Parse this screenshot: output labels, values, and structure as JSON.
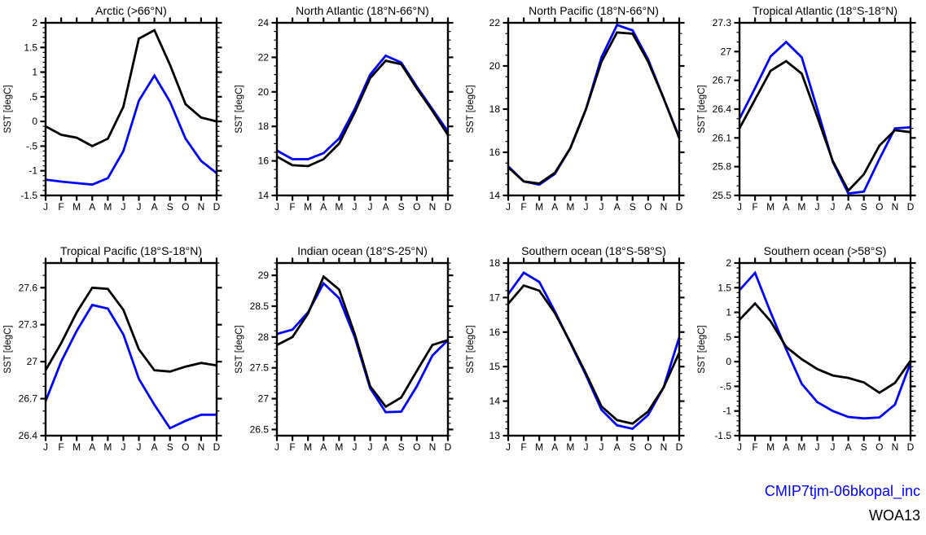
{
  "page": {
    "background": "#ffffff"
  },
  "legend": {
    "model_label": "CMIP7tjm-06bkopal_inc",
    "obs_label": "WOA13"
  },
  "colors": {
    "model": "#0000ff",
    "obs": "#000000"
  },
  "months": [
    "J",
    "F",
    "M",
    "A",
    "M",
    "J",
    "J",
    "A",
    "S",
    "O",
    "N",
    "D"
  ],
  "ylabel": "SST [degC]",
  "chart_data": [
    {
      "type": "line",
      "slug": "arctic",
      "title": "Arctic (>66°N)",
      "xlabel": "",
      "ylabel": "SST [degC]",
      "categories": [
        "J",
        "F",
        "M",
        "A",
        "M",
        "J",
        "J",
        "A",
        "S",
        "O",
        "N",
        "D"
      ],
      "ylim": [
        -1.5,
        2
      ],
      "yticks": [
        -1.5,
        -1,
        -0.5,
        0,
        0.5,
        1,
        1.5,
        2
      ],
      "ytick_labels": [
        "-1.5",
        "-1",
        "-.5",
        "0",
        ".5",
        "1",
        "1.5",
        "2"
      ],
      "minor_step": 0.1,
      "grid": false,
      "series": [
        {
          "name": "CMIP7tjm-06bkopal_inc",
          "color": "#0000ff",
          "values": [
            -1.18,
            -1.22,
            -1.25,
            -1.28,
            -1.15,
            -0.6,
            0.42,
            0.93,
            0.4,
            -0.35,
            -0.8,
            -1.05
          ]
        },
        {
          "name": "WOA13",
          "color": "#000000",
          "values": [
            -0.1,
            -0.27,
            -0.33,
            -0.5,
            -0.35,
            0.3,
            1.68,
            1.85,
            1.15,
            0.35,
            0.08,
            0.0
          ]
        }
      ]
    },
    {
      "type": "line",
      "slug": "north-atlantic",
      "title": "North Atlantic (18°N-66°N)",
      "xlabel": "",
      "ylabel": "SST [degC]",
      "categories": [
        "J",
        "F",
        "M",
        "A",
        "M",
        "J",
        "J",
        "A",
        "S",
        "O",
        "N",
        "D"
      ],
      "ylim": [
        14,
        24
      ],
      "yticks": [
        14,
        16,
        18,
        20,
        22,
        24
      ],
      "ytick_labels": [
        "14",
        "16",
        "18",
        "20",
        "22",
        "24"
      ],
      "minor_step": 0.5,
      "grid": false,
      "series": [
        {
          "name": "CMIP7tjm-06bkopal_inc",
          "color": "#0000ff",
          "values": [
            16.6,
            16.1,
            16.1,
            16.45,
            17.3,
            19.0,
            21.0,
            22.1,
            21.7,
            20.3,
            19.0,
            17.7
          ]
        },
        {
          "name": "WOA13",
          "color": "#000000",
          "values": [
            16.25,
            15.75,
            15.7,
            16.1,
            17.0,
            18.8,
            20.8,
            21.8,
            21.6,
            20.2,
            18.9,
            17.5
          ]
        }
      ]
    },
    {
      "type": "line",
      "slug": "north-pacific",
      "title": "North Pacific (18°N-66°N)",
      "xlabel": "",
      "ylabel": "SST [degC]",
      "categories": [
        "J",
        "F",
        "M",
        "A",
        "M",
        "J",
        "J",
        "A",
        "S",
        "O",
        "N",
        "D"
      ],
      "ylim": [
        14,
        22
      ],
      "yticks": [
        14,
        16,
        18,
        20,
        22
      ],
      "ytick_labels": [
        "14",
        "16",
        "18",
        "20",
        "22"
      ],
      "minor_step": 0.5,
      "grid": false,
      "series": [
        {
          "name": "CMIP7tjm-06bkopal_inc",
          "color": "#0000ff",
          "values": [
            15.35,
            14.65,
            14.5,
            15.0,
            16.2,
            18.0,
            20.4,
            21.9,
            21.65,
            20.3,
            18.5,
            16.7
          ]
        },
        {
          "name": "WOA13",
          "color": "#000000",
          "values": [
            15.3,
            14.65,
            14.55,
            15.05,
            16.2,
            18.0,
            20.2,
            21.55,
            21.5,
            20.2,
            18.5,
            16.65
          ]
        }
      ]
    },
    {
      "type": "line",
      "slug": "tropical-atlantic",
      "title": "Tropical Atlantic (18°S-18°N)",
      "xlabel": "",
      "ylabel": "SST [degC]",
      "categories": [
        "J",
        "F",
        "M",
        "A",
        "M",
        "J",
        "J",
        "A",
        "S",
        "O",
        "N",
        "D"
      ],
      "ylim": [
        25.5,
        27.3
      ],
      "yticks": [
        25.5,
        25.8,
        26.1,
        26.4,
        26.7,
        27,
        27.3
      ],
      "ytick_labels": [
        "25.5",
        "25.8",
        "26.1",
        "26.4",
        "26.7",
        "27",
        "27.3"
      ],
      "minor_step": 0.1,
      "grid": false,
      "series": [
        {
          "name": "CMIP7tjm-06bkopal_inc",
          "color": "#0000ff",
          "values": [
            26.3,
            26.62,
            26.95,
            27.1,
            26.94,
            26.4,
            25.85,
            25.52,
            25.54,
            25.88,
            26.2,
            26.21
          ]
        },
        {
          "name": "WOA13",
          "color": "#000000",
          "values": [
            26.2,
            26.5,
            26.8,
            26.9,
            26.77,
            26.32,
            25.86,
            25.55,
            25.72,
            26.02,
            26.18,
            26.16
          ]
        }
      ]
    },
    {
      "type": "line",
      "slug": "tropical-pacific",
      "title": "Tropical Pacific (18°S-18°N)",
      "xlabel": "",
      "ylabel": "SST [degC]",
      "categories": [
        "J",
        "F",
        "M",
        "A",
        "M",
        "J",
        "J",
        "A",
        "S",
        "O",
        "N",
        "D"
      ],
      "ylim": [
        26.4,
        27.8
      ],
      "yticks": [
        26.4,
        26.7,
        27,
        27.3,
        27.6
      ],
      "ytick_labels": [
        "26.4",
        "26.7",
        "27",
        "27.3",
        "27.6"
      ],
      "minor_step": 0.1,
      "grid": false,
      "series": [
        {
          "name": "CMIP7tjm-06bkopal_inc",
          "color": "#0000ff",
          "values": [
            26.68,
            27.0,
            27.25,
            27.46,
            27.43,
            27.22,
            26.86,
            26.65,
            26.46,
            26.52,
            26.57,
            26.57
          ]
        },
        {
          "name": "WOA13",
          "color": "#000000",
          "values": [
            26.93,
            27.15,
            27.4,
            27.6,
            27.59,
            27.42,
            27.1,
            26.93,
            26.92,
            26.96,
            26.99,
            26.97
          ]
        }
      ]
    },
    {
      "type": "line",
      "slug": "indian-ocean",
      "title": "Indian ocean (18°S-25°N)",
      "xlabel": "",
      "ylabel": "SST [degC]",
      "categories": [
        "J",
        "F",
        "M",
        "A",
        "M",
        "J",
        "J",
        "A",
        "S",
        "O",
        "N",
        "D"
      ],
      "ylim": [
        26.4,
        29.2
      ],
      "yticks": [
        26.5,
        27,
        27.5,
        28,
        28.5,
        29
      ],
      "ytick_labels": [
        "26.5",
        "27",
        "27.5",
        "28",
        "28.5",
        "29"
      ],
      "minor_step": 0.1,
      "grid": false,
      "series": [
        {
          "name": "CMIP7tjm-06bkopal_inc",
          "color": "#0000ff",
          "values": [
            28.05,
            28.12,
            28.4,
            28.87,
            28.63,
            28.0,
            27.17,
            26.78,
            26.79,
            27.2,
            27.7,
            27.95
          ]
        },
        {
          "name": "WOA13",
          "color": "#000000",
          "values": [
            27.87,
            28.0,
            28.38,
            28.98,
            28.77,
            28.05,
            27.2,
            26.87,
            27.02,
            27.45,
            27.87,
            27.95
          ]
        }
      ]
    },
    {
      "type": "line",
      "slug": "southern-ocean-mid",
      "title": "Southern ocean (18°S-58°S)",
      "xlabel": "",
      "ylabel": "SST [degC]",
      "categories": [
        "J",
        "F",
        "M",
        "A",
        "M",
        "J",
        "J",
        "A",
        "S",
        "O",
        "N",
        "D"
      ],
      "ylim": [
        13,
        18
      ],
      "yticks": [
        13,
        14,
        15,
        16,
        17,
        18
      ],
      "ytick_labels": [
        "13",
        "14",
        "15",
        "16",
        "17",
        "18"
      ],
      "minor_step": 0.2,
      "grid": false,
      "series": [
        {
          "name": "CMIP7tjm-06bkopal_inc",
          "color": "#0000ff",
          "values": [
            17.1,
            17.72,
            17.45,
            16.6,
            15.68,
            14.75,
            13.75,
            13.3,
            13.2,
            13.6,
            14.4,
            15.85
          ]
        },
        {
          "name": "WOA13",
          "color": "#000000",
          "values": [
            16.82,
            17.35,
            17.2,
            16.55,
            15.7,
            14.8,
            13.85,
            13.45,
            13.35,
            13.7,
            14.4,
            15.4
          ]
        }
      ]
    },
    {
      "type": "line",
      "slug": "southern-ocean-high",
      "title": "Southern ocean (>58°S)",
      "xlabel": "",
      "ylabel": "SST [degC]",
      "categories": [
        "J",
        "F",
        "M",
        "A",
        "M",
        "J",
        "J",
        "A",
        "S",
        "O",
        "N",
        "D"
      ],
      "ylim": [
        -1.5,
        2
      ],
      "yticks": [
        -1.5,
        -1,
        -0.5,
        0,
        0.5,
        1,
        1.5,
        2
      ],
      "ytick_labels": [
        "-1.5",
        "-1",
        "-.5",
        "0",
        ".5",
        "1",
        "1.5",
        "2"
      ],
      "minor_step": 0.1,
      "grid": false,
      "series": [
        {
          "name": "CMIP7tjm-06bkopal_inc",
          "color": "#0000ff",
          "values": [
            1.45,
            1.8,
            1.0,
            0.25,
            -0.45,
            -0.82,
            -1.0,
            -1.12,
            -1.15,
            -1.13,
            -0.87,
            -0.02
          ]
        },
        {
          "name": "WOA13",
          "color": "#000000",
          "values": [
            0.85,
            1.18,
            0.82,
            0.3,
            0.05,
            -0.15,
            -0.28,
            -0.33,
            -0.42,
            -0.63,
            -0.43,
            0.02
          ]
        }
      ]
    }
  ]
}
